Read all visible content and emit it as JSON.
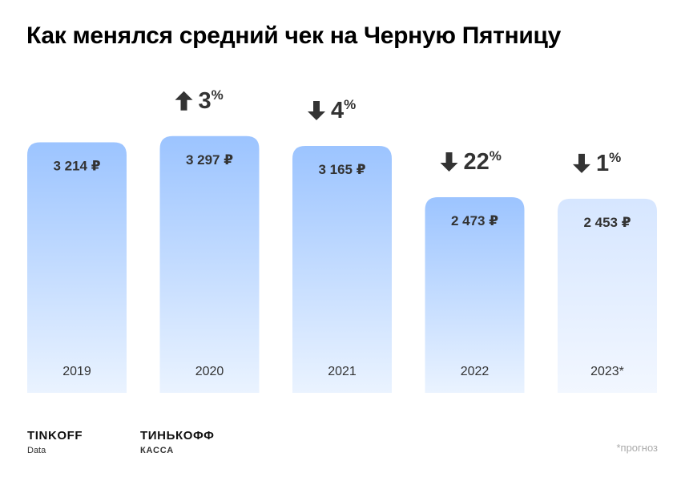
{
  "chart_data": {
    "type": "bar",
    "title": "Как менялся средний чек на Черную Пятницу",
    "categories": [
      "2019",
      "2020",
      "2021",
      "2022",
      "2023*"
    ],
    "values": [
      3214,
      3297,
      3165,
      2473,
      2453
    ],
    "value_labels": [
      "3 214 ₽",
      "3 297 ₽",
      "3 165 ₽",
      "2 473 ₽",
      "2 453 ₽"
    ],
    "changes": [
      null,
      {
        "direction": "up",
        "value": "3",
        "unit": "%"
      },
      {
        "direction": "down",
        "value": "4",
        "unit": "%"
      },
      {
        "direction": "down",
        "value": "22",
        "unit": "%"
      },
      {
        "direction": "down",
        "value": "1",
        "unit": "%"
      }
    ],
    "forecast_index": 4,
    "bar_color": "#9cc4ff",
    "forecast_bar_color": "#d6e6ff"
  },
  "footer": {
    "brand1": {
      "name": "TINKOFF",
      "sub": "Data"
    },
    "brand2": {
      "name": "ТИНЬКОФФ",
      "sub": "КАССА"
    },
    "note": "*прогноз"
  }
}
